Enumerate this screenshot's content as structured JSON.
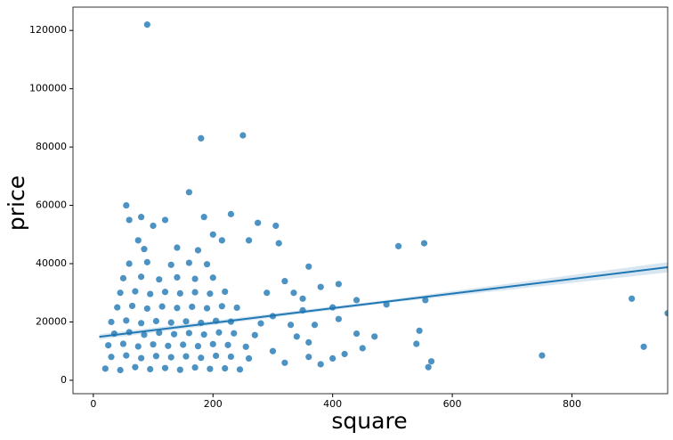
{
  "chart_data": {
    "type": "scatter",
    "x_label": "square",
    "y_label": "price",
    "color": "#1f77b4",
    "x": [
      20,
      45,
      70,
      95,
      120,
      145,
      170,
      195,
      220,
      245,
      30,
      55,
      80,
      105,
      130,
      155,
      180,
      205,
      230,
      260,
      25,
      50,
      75,
      100,
      125,
      150,
      175,
      200,
      225,
      255,
      35,
      60,
      85,
      110,
      135,
      160,
      185,
      210,
      235,
      270,
      30,
      55,
      80,
      105,
      130,
      155,
      180,
      205,
      230,
      280,
      40,
      65,
      90,
      115,
      140,
      165,
      190,
      215,
      240,
      45,
      70,
      95,
      120,
      145,
      170,
      195,
      220,
      50,
      80,
      110,
      140,
      170,
      200,
      60,
      90,
      130,
      160,
      190,
      85,
      140,
      175,
      300,
      320,
      340,
      360,
      380,
      300,
      330,
      360,
      400,
      420,
      440,
      370,
      410,
      290,
      350,
      90,
      180,
      250,
      160,
      55,
      510,
      553,
      900,
      920,
      960,
      750,
      560,
      565,
      545,
      540,
      555,
      490,
      470,
      450,
      440,
      400,
      410,
      380,
      360,
      350,
      335,
      320,
      305,
      310,
      275,
      260,
      230,
      185,
      120,
      100,
      80,
      60,
      75,
      200,
      215
    ],
    "y": [
      4000,
      3500,
      4500,
      3800,
      4200,
      3600,
      4400,
      3900,
      4100,
      3700,
      8000,
      8500,
      7600,
      8300,
      7900,
      8200,
      7700,
      8400,
      8100,
      7500,
      12000,
      12500,
      11600,
      12300,
      11800,
      12200,
      11700,
      12400,
      12100,
      11500,
      16000,
      16500,
      15600,
      16300,
      15800,
      16200,
      15700,
      16400,
      16100,
      15500,
      20000,
      20500,
      19600,
      20300,
      19800,
      20200,
      19700,
      20400,
      20100,
      19500,
      25000,
      25500,
      24600,
      25300,
      24800,
      25200,
      24700,
      25400,
      24900,
      30000,
      30500,
      29600,
      30300,
      29800,
      30200,
      29700,
      30400,
      35000,
      35500,
      34600,
      35300,
      34800,
      35200,
      40000,
      40500,
      39600,
      40300,
      39800,
      45000,
      45500,
      44600,
      10000,
      6000,
      15000,
      8000,
      5500,
      22000,
      19000,
      13000,
      7500,
      9000,
      16000,
      19000,
      21000,
      30000,
      24000,
      122000,
      83000,
      84000,
      64500,
      60000,
      46000,
      47000,
      28000,
      11500,
      23000,
      8500,
      4500,
      6500,
      17000,
      12500,
      27500,
      26000,
      15000,
      11000,
      27500,
      25000,
      33000,
      32000,
      39000,
      28000,
      30000,
      34000,
      53000,
      47000,
      54000,
      48000,
      57000,
      56000,
      55000,
      53000,
      56000,
      55000,
      48000,
      50000,
      48000
    ],
    "fit": {
      "x": [
        10,
        500,
        960
      ],
      "y": [
        14920,
        27220,
        38770
      ],
      "lower": [
        14000,
        26700,
        37000
      ],
      "upper": [
        15800,
        27800,
        40500
      ]
    },
    "xlim": [
      -34,
      960
    ],
    "ylim": [
      -4600,
      128000
    ],
    "xticks": [
      0,
      200,
      400,
      600,
      800
    ],
    "yticks": [
      0,
      20000,
      40000,
      60000,
      80000,
      100000,
      120000
    ]
  }
}
